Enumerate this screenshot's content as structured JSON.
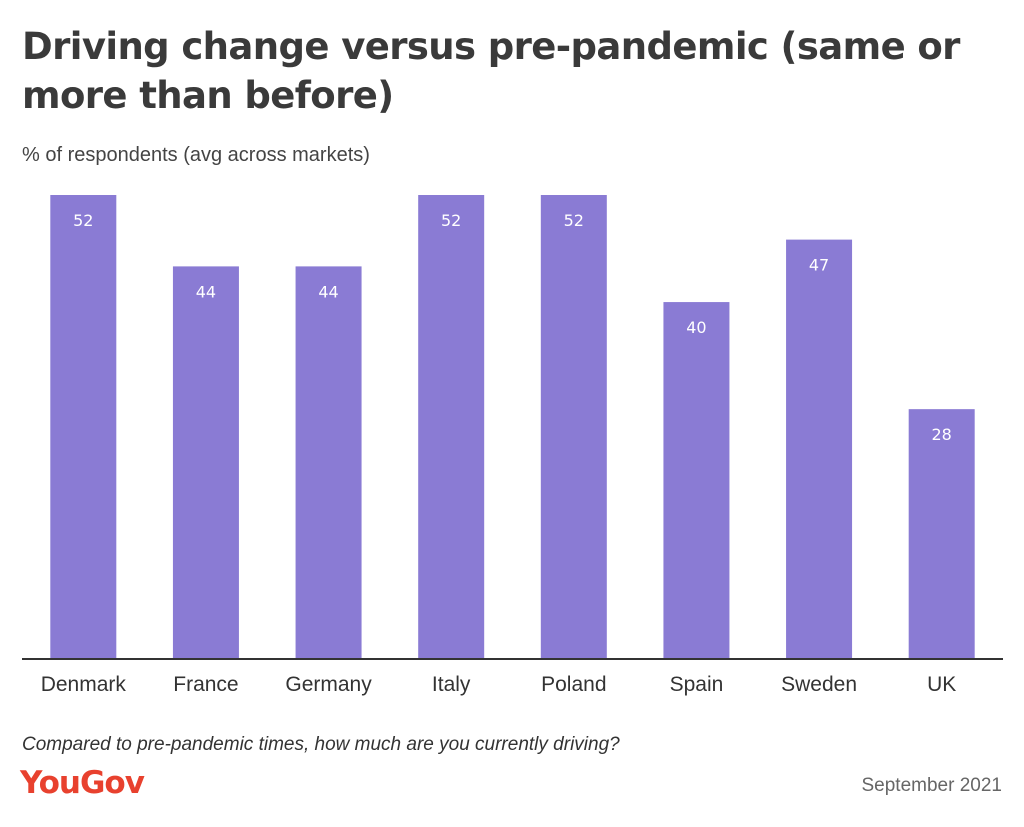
{
  "title": "Driving change versus pre-pandemic (same or more than before)",
  "subtitle": "% of respondents (avg across markets)",
  "question": "Compared to pre-pandemic times, how much are you currently driving?",
  "brand": "YouGov",
  "date": "September 2021",
  "colors": {
    "bar": "#8a7bd4",
    "brand": "#e8412e"
  },
  "chart_data": {
    "type": "bar",
    "categories": [
      "Denmark",
      "France",
      "Germany",
      "Italy",
      "Poland",
      "Spain",
      "Sweden",
      "UK"
    ],
    "values": [
      52,
      44,
      44,
      52,
      52,
      40,
      47,
      28
    ],
    "ylim": [
      0,
      52
    ],
    "grid": false,
    "legend": "none"
  }
}
